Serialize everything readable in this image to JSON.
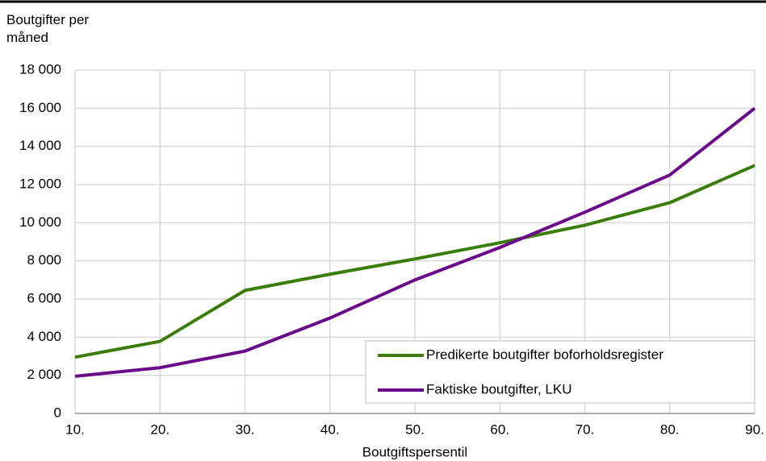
{
  "chart_data": {
    "type": "line",
    "y_label": "Boutgifter per måned",
    "x_label": "Boutgiftspersentil",
    "categories": [
      "10.",
      "20.",
      "30.",
      "40.",
      "50.",
      "60.",
      "70.",
      "80.",
      "90."
    ],
    "series": [
      {
        "name": "Predikerte boutgifter boforholdsregister",
        "color": "#3a7d0a",
        "values": [
          2950,
          3780,
          6450,
          7300,
          8100,
          8950,
          9870,
          11050,
          13000
        ]
      },
      {
        "name": "Faktiske boutgifter, LKU",
        "color": "#6a0a8a",
        "values": [
          1950,
          2400,
          3270,
          5000,
          7000,
          8700,
          10550,
          12500,
          16000
        ]
      }
    ],
    "ylim": [
      0,
      18000
    ],
    "yticks": [
      0,
      {
        "value": 2000,
        "label": "2 000"
      },
      {
        "value": 4000,
        "label": "4 000"
      },
      {
        "value": 6000,
        "label": "6 000"
      },
      {
        "value": 8000,
        "label": "8 000"
      },
      {
        "value": 10000,
        "label": "10 000"
      },
      {
        "value": 12000,
        "label": "12 000"
      },
      {
        "value": 14000,
        "label": "14 000"
      },
      {
        "value": 16000,
        "label": "16 000"
      },
      {
        "value": 18000,
        "label": "18 000"
      }
    ],
    "grid": true,
    "legend": "lower right"
  }
}
